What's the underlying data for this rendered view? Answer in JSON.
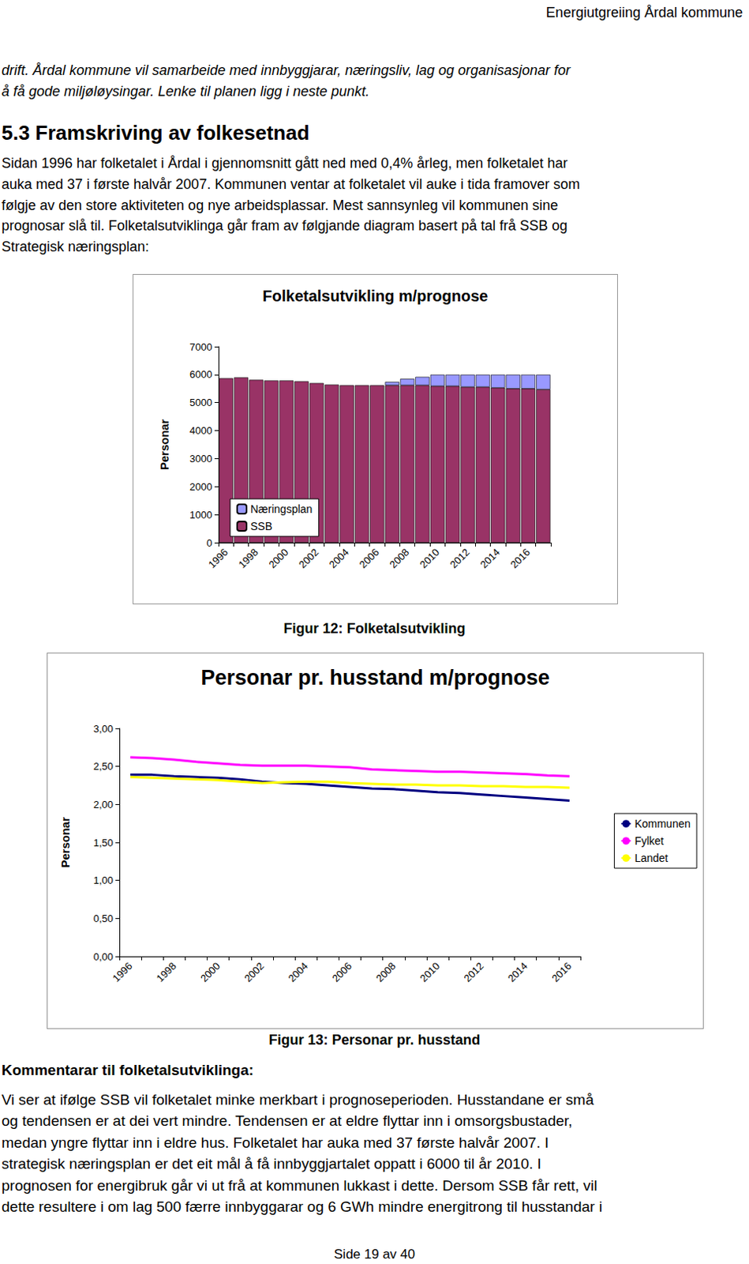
{
  "header": "Energiutgreiing Årdal kommune",
  "intro_lines": [
    "drift. Årdal kommune vil samarbeide med innbyggjarar, næringsliv, lag og organisasjonar for",
    "å få gode miljøløysingar. Lenke til planen ligg i neste punkt."
  ],
  "heading": "5.3 Framskriving av folkesetnad",
  "paragraph_lines": [
    "Sidan 1996 har folketalet i Årdal i gjennomsnitt gått ned med 0,4% årleg, men folketalet har",
    "auka med 37 i første halvår 2007. Kommunen ventar at folketalet vil auke i tida framover som",
    "følgje av den store aktiviteten og nye arbeidsplassar. Mest sannsynleg vil kommunen sine",
    "prognosar slå til. Folketalsutviklinga går fram av følgjande diagram basert på tal frå SSB og",
    "Strategisk næringsplan:"
  ],
  "captions": [
    "Figur 12: Folketalsutvikling",
    "Figur 13: Personar pr. husstand"
  ],
  "comment_heading": "Kommentarar til folketalsutviklinga:",
  "comment_lines": [
    "Vi ser at ifølge SSB vil folketalet minke merkbart i prognoseperioden. Husstandane er små",
    "og tendensen er at dei vert mindre. Tendensen er at eldre flyttar inn i omsorgsbustader,",
    "medan yngre flyttar inn i eldre hus. Folketalet har auka med 37 første halvår 2007. I",
    "strategisk næringsplan er det eit mål å få innbyggjartalet oppatt i 6000 til år 2010. I",
    "prognosen for energibruk går vi ut frå at kommunen lukkast i dette. Dersom SSB får rett, vil",
    "dette resultere i om lag 500 færre innbyggarar og 6 GWh mindre energitrong til husstandar i"
  ],
  "footer": "Side 19 av 40",
  "chart_data": [
    {
      "type": "bar",
      "title": "Folketalsutvikling m/prognose",
      "y_label": "Personar",
      "categories": [
        "1996",
        null,
        "1998",
        null,
        "2000",
        null,
        "2002",
        null,
        "2004",
        null,
        "2006",
        null,
        "2008",
        null,
        "2010",
        null,
        "2012",
        null,
        "2014",
        null,
        "2016",
        null
      ],
      "stacked": true,
      "series": [
        {
          "name": "SSB",
          "color": "#993366",
          "values": [
            5870,
            5900,
            5815,
            5790,
            5790,
            5760,
            5700,
            5645,
            5620,
            5620,
            5620,
            5620,
            5620,
            5620,
            5590,
            5590,
            5560,
            5560,
            5530,
            5500,
            5500,
            5470
          ]
        },
        {
          "name": "Næringsplan",
          "color": "#9999ff",
          "values": [
            null,
            null,
            null,
            null,
            null,
            null,
            null,
            null,
            null,
            null,
            null,
            120,
            230,
            300,
            410,
            410,
            440,
            440,
            470,
            500,
            500,
            530
          ]
        }
      ],
      "ylim": [
        0,
        7000
      ],
      "yticks": [
        0,
        1000,
        2000,
        3000,
        4000,
        5000,
        6000,
        7000
      ],
      "grid": false,
      "legend": "lower-left"
    },
    {
      "type": "line",
      "title": "Personar pr. husstand m/prognose",
      "y_label": "Personar",
      "categories": [
        "1996",
        null,
        "1998",
        null,
        "2000",
        null,
        "2002",
        null,
        "2004",
        null,
        "2006",
        null,
        "2008",
        null,
        "2010",
        null,
        "2012",
        null,
        "2014",
        null,
        "2016"
      ],
      "series": [
        {
          "name": "Kommunen",
          "color": "#000080",
          "values": [
            2.39,
            2.39,
            2.37,
            2.36,
            2.35,
            2.33,
            2.3,
            2.28,
            2.27,
            2.25,
            2.23,
            2.21,
            2.2,
            2.18,
            2.16,
            2.15,
            2.13,
            2.11,
            2.09,
            2.07,
            2.05
          ]
        },
        {
          "name": "Fylket",
          "color": "#ff00ff",
          "values": [
            2.62,
            2.61,
            2.59,
            2.56,
            2.54,
            2.52,
            2.51,
            2.51,
            2.51,
            2.5,
            2.49,
            2.46,
            2.45,
            2.44,
            2.43,
            2.43,
            2.42,
            2.41,
            2.4,
            2.38,
            2.37
          ]
        },
        {
          "name": "Landet",
          "color": "#ffff00",
          "values": [
            2.36,
            2.35,
            2.34,
            2.33,
            2.32,
            2.3,
            2.28,
            2.29,
            2.3,
            2.3,
            2.28,
            2.27,
            2.26,
            2.26,
            2.25,
            2.25,
            2.24,
            2.24,
            2.23,
            2.23,
            2.22
          ]
        }
      ],
      "ylim": [
        0,
        3
      ],
      "yticks": [
        {
          "value": 0,
          "label": "0,00"
        },
        {
          "value": 0.5,
          "label": "0,50"
        },
        {
          "value": 1,
          "label": "1,00"
        },
        {
          "value": 1.5,
          "label": "1,50"
        },
        {
          "value": 2,
          "label": "2,00"
        },
        {
          "value": 2.5,
          "label": "2,50"
        },
        {
          "value": 3,
          "label": "3,00"
        }
      ],
      "grid": false,
      "legend": "right"
    }
  ]
}
